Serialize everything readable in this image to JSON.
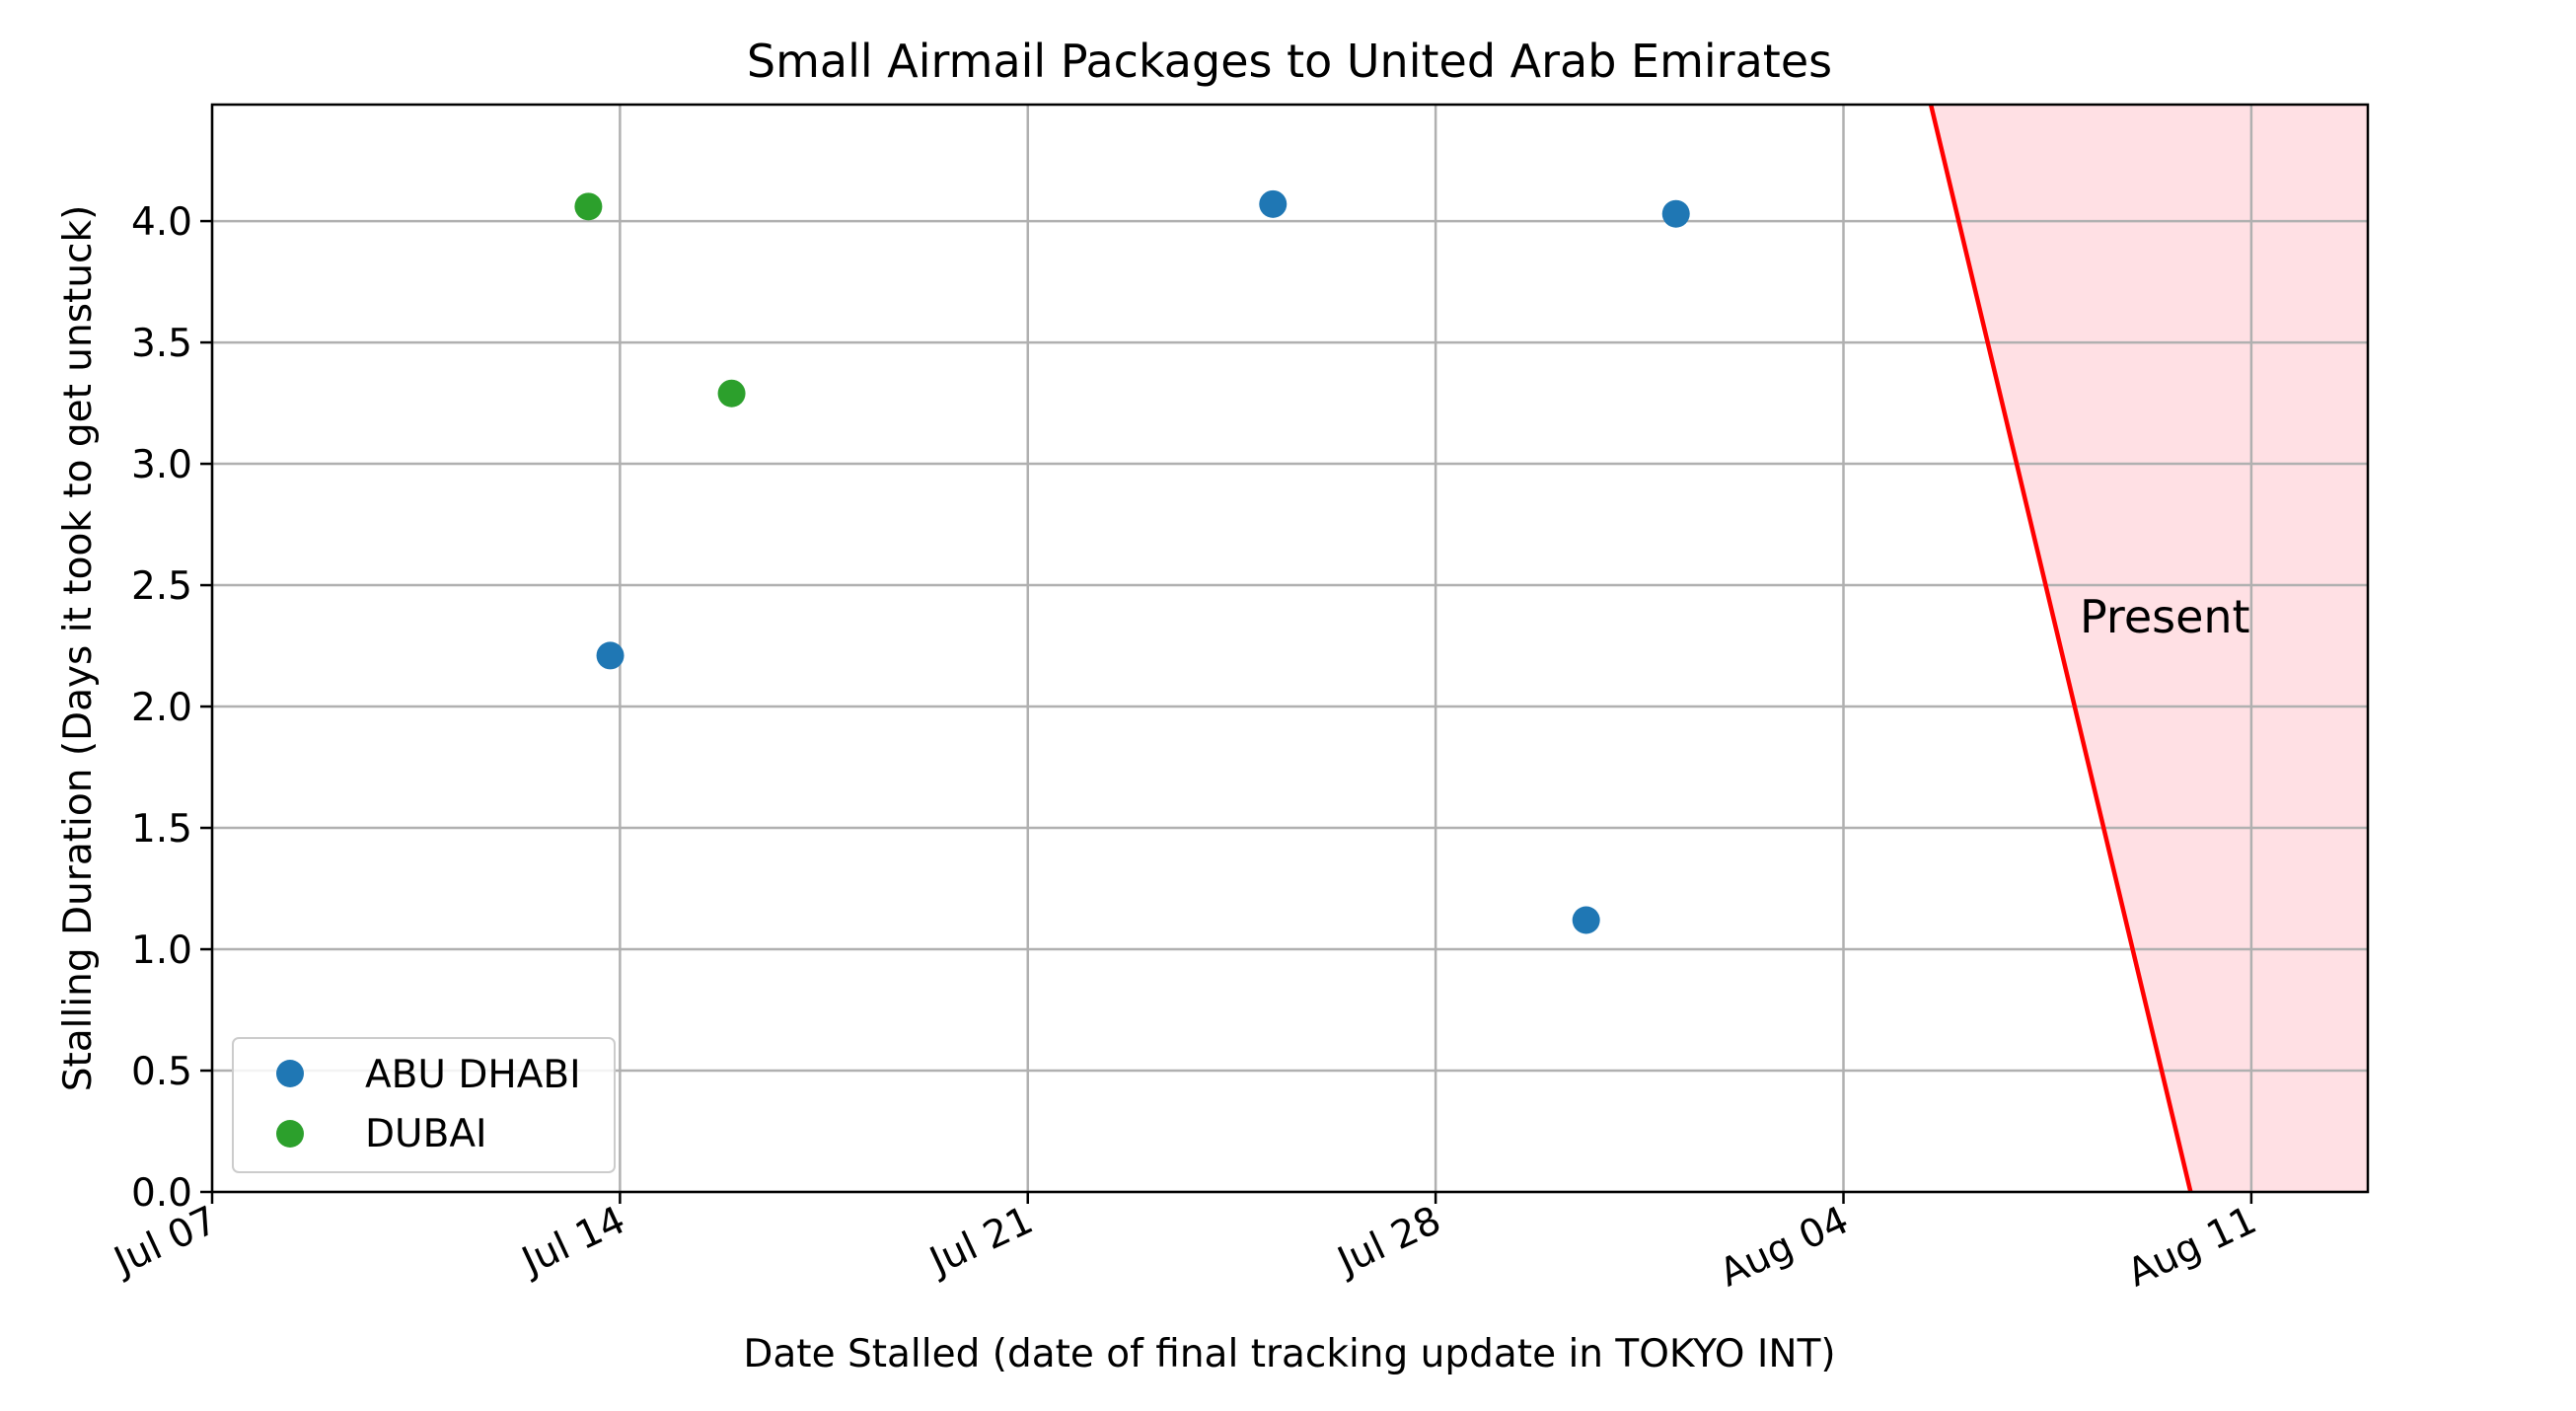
{
  "chart_data": {
    "type": "scatter",
    "title": "Small Airmail Packages to United Arab Emirates",
    "xlabel": "Date Stalled (date of final tracking update in TOKYO INT)",
    "ylabel": "Stalling Duration (Days it took to get unstuck)",
    "x_axis": {
      "kind": "date",
      "range": [
        "2024-07-07",
        "2024-08-13"
      ],
      "ticks": [
        {
          "date": "2024-07-07",
          "label": "Jul 07"
        },
        {
          "date": "2024-07-14",
          "label": "Jul 14"
        },
        {
          "date": "2024-07-21",
          "label": "Jul 21"
        },
        {
          "date": "2024-07-28",
          "label": "Jul 28"
        },
        {
          "date": "2024-08-04",
          "label": "Aug 04"
        },
        {
          "date": "2024-08-11",
          "label": "Aug 11"
        }
      ]
    },
    "y_axis": {
      "range": [
        0,
        4.48
      ],
      "ticks": [
        {
          "value": 0,
          "label": "0.0"
        },
        {
          "value": 0.5,
          "label": "0.5"
        },
        {
          "value": 1,
          "label": "1.0"
        },
        {
          "value": 1.5,
          "label": "1.5"
        },
        {
          "value": 2,
          "label": "2.0"
        },
        {
          "value": 2.5,
          "label": "2.5"
        },
        {
          "value": 3,
          "label": "3.0"
        },
        {
          "value": 3.5,
          "label": "3.5"
        },
        {
          "value": 4,
          "label": "4.0"
        }
      ]
    },
    "grid": true,
    "legend_position": "lower-left",
    "series": [
      {
        "name": "ABU DHABI",
        "color": "#1f77b4",
        "points": [
          {
            "x": "2024-07-13 20:00",
            "y": 2.21
          },
          {
            "x": "2024-07-25 05:00",
            "y": 4.07
          },
          {
            "x": "2024-07-30 14:00",
            "y": 1.12
          },
          {
            "x": "2024-08-01 03:00",
            "y": 4.03
          }
        ]
      },
      {
        "name": "DUBAI",
        "color": "#2ca02c",
        "points": [
          {
            "x": "2024-07-13 11:00",
            "y": 4.06
          },
          {
            "x": "2024-07-15 22:00",
            "y": 3.29
          }
        ]
      }
    ],
    "present_marker": {
      "label": "Present",
      "line_color": "#ff0000",
      "fill_color": "#ffe0e4",
      "line_top": {
        "x": "2024-08-05 12:00",
        "y": 4.48
      },
      "line_bottom": {
        "x": "2024-08-09 23:00",
        "y": 0
      }
    }
  }
}
